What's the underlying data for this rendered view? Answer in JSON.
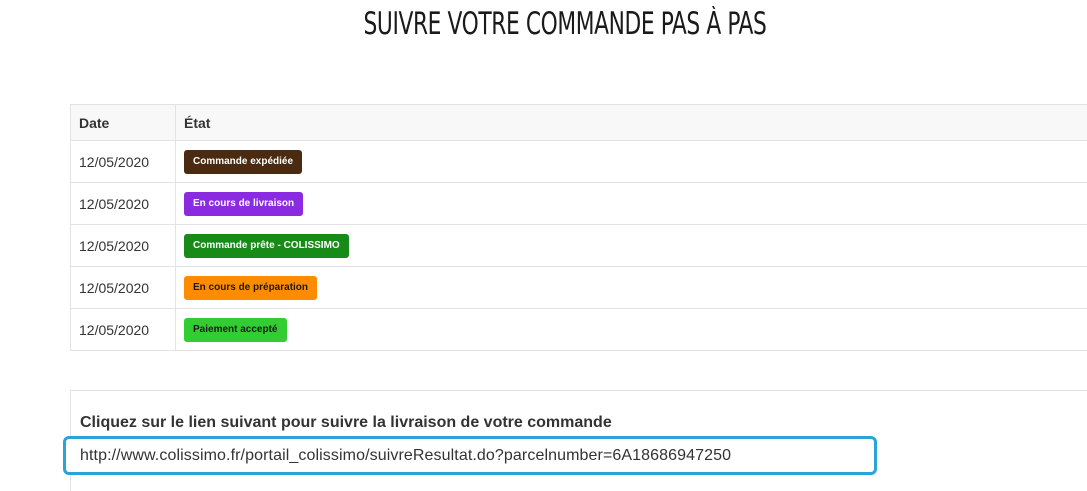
{
  "page": {
    "title": "SUIVRE VOTRE COMMANDE PAS À PAS"
  },
  "history_table": {
    "columns": [
      "Date",
      "État"
    ],
    "rows": [
      {
        "date": "12/05/2020",
        "status": "Commande expédiée",
        "color": "#4a2a10",
        "text_color": "#ffffff"
      },
      {
        "date": "12/05/2020",
        "status": "En cours de livraison",
        "color": "#8a2be2",
        "text_color": "#ffffff"
      },
      {
        "date": "12/05/2020",
        "status": "Commande prête - COLISSIMO",
        "color": "#178a17",
        "text_color": "#ffffff"
      },
      {
        "date": "12/05/2020",
        "status": "En cours de préparation",
        "color": "#ff8c00",
        "text_color": "#1a1a1a"
      },
      {
        "date": "12/05/2020",
        "status": "Paiement accepté",
        "color": "#32cd32",
        "text_color": "#1a1a1a"
      }
    ]
  },
  "tracking": {
    "label": "Cliquez sur le lien suivant pour suivre la livraison de votre commande",
    "url": "http://www.colissimo.fr/portail_colissimo/suivreResultat.do?parcelnumber=6A18686947250",
    "highlight_color": "#2aa3d6"
  }
}
